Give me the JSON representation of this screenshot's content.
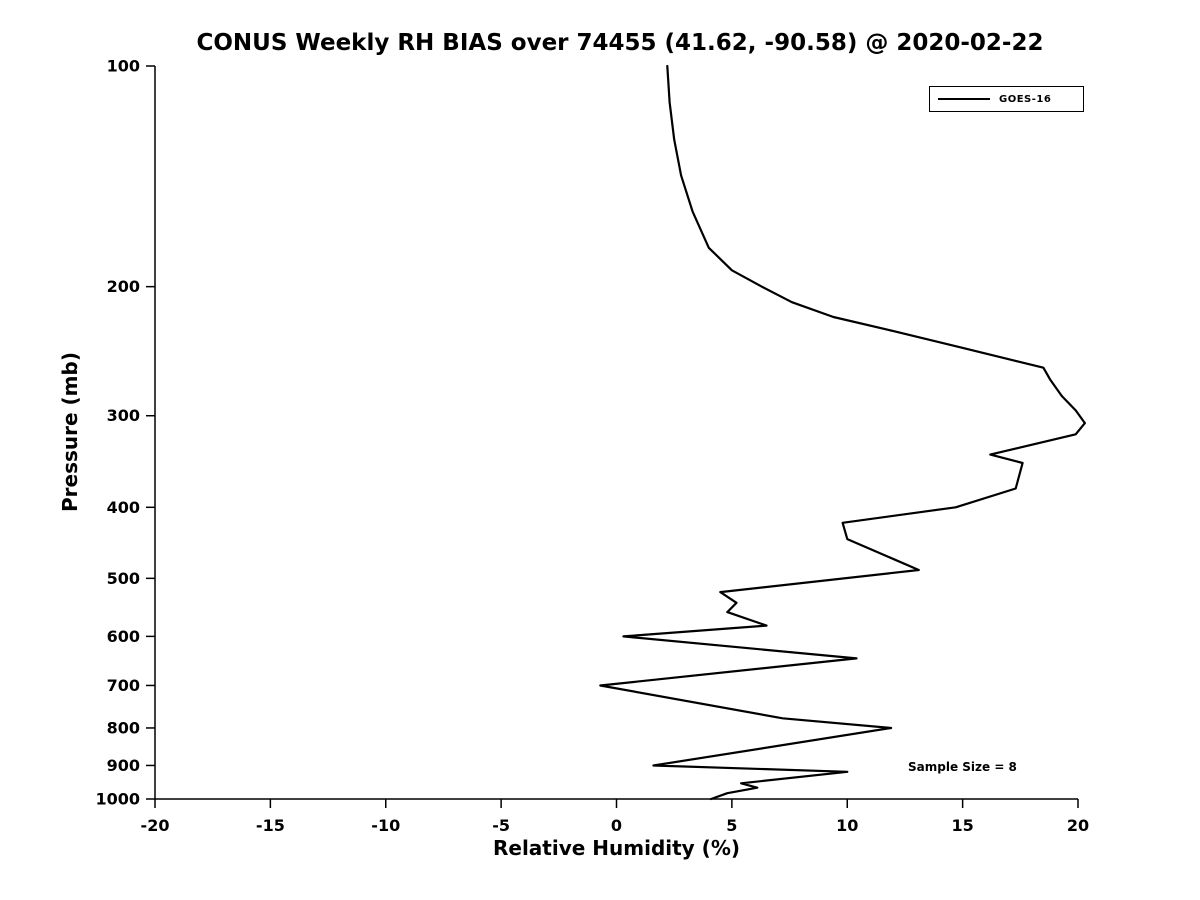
{
  "figure": {
    "background": "#ffffff",
    "line_color": "#000000",
    "text_color": "#000000"
  },
  "chart_data": {
    "type": "line",
    "title": "CONUS Weekly RH BIAS over 74455 (41.62, -90.58) @ 2020-02-22",
    "xlabel": "Relative Humidity (%)",
    "ylabel": "Pressure (mb)",
    "xlim": [
      -20,
      20
    ],
    "ylim": [
      100,
      1000
    ],
    "y_scale": "log",
    "y_inverted": true,
    "grid": false,
    "xticks": [
      -20,
      -15,
      -10,
      -5,
      0,
      5,
      10,
      15,
      20
    ],
    "yticks": [
      100,
      200,
      300,
      400,
      500,
      600,
      700,
      800,
      900,
      1000
    ],
    "legend_position": "top-right",
    "annotation": "Sample Size = 8",
    "series": [
      {
        "name": "GOES-16",
        "color": "#000000",
        "points_rh_pressure": [
          [
            2.2,
            100
          ],
          [
            2.3,
            112
          ],
          [
            2.5,
            126
          ],
          [
            2.8,
            141
          ],
          [
            3.3,
            158
          ],
          [
            4.0,
            177
          ],
          [
            5.0,
            190
          ],
          [
            6.3,
            200
          ],
          [
            7.6,
            210
          ],
          [
            9.4,
            220
          ],
          [
            12.0,
            230
          ],
          [
            14.9,
            242
          ],
          [
            18.5,
            258
          ],
          [
            18.8,
            268
          ],
          [
            19.3,
            282
          ],
          [
            19.9,
            295
          ],
          [
            20.3,
            307
          ],
          [
            19.9,
            318
          ],
          [
            16.2,
            339
          ],
          [
            17.6,
            348
          ],
          [
            17.3,
            377
          ],
          [
            14.7,
            400
          ],
          [
            9.8,
            420
          ],
          [
            10.0,
            442
          ],
          [
            13.1,
            487
          ],
          [
            4.5,
            522
          ],
          [
            5.2,
            540
          ],
          [
            4.8,
            556
          ],
          [
            6.5,
            580
          ],
          [
            0.3,
            600
          ],
          [
            10.4,
            643
          ],
          [
            -0.7,
            700
          ],
          [
            7.2,
            776
          ],
          [
            11.9,
            800
          ],
          [
            1.6,
            900
          ],
          [
            10.0,
            918
          ],
          [
            5.4,
            952
          ],
          [
            6.1,
            965
          ],
          [
            4.8,
            982
          ],
          [
            4.1,
            1000
          ]
        ]
      }
    ]
  }
}
